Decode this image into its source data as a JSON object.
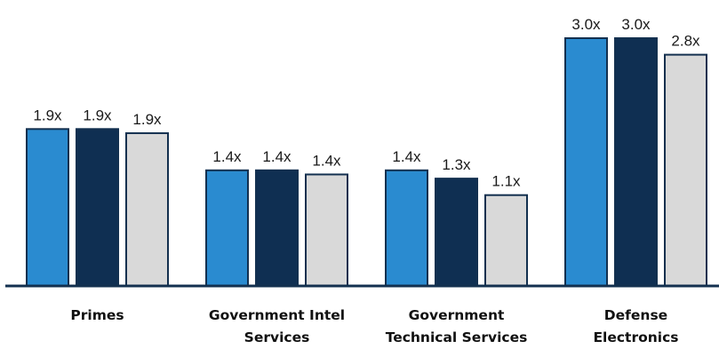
{
  "chart_data": {
    "type": "bar",
    "categories": [
      [
        "Primes"
      ],
      [
        "Government Intel",
        "Services"
      ],
      [
        "Government",
        "Technical Services"
      ],
      [
        "Defense",
        "Electronics"
      ]
    ],
    "series": [
      {
        "values": [
          1.9,
          1.4,
          1.4,
          3.0
        ],
        "labels": [
          "1.9x",
          "1.4x",
          "1.4x",
          "3.0x"
        ],
        "color": "#2a8bd0"
      },
      {
        "values": [
          1.9,
          1.4,
          1.3,
          3.0
        ],
        "labels": [
          "1.9x",
          "1.4x",
          "1.3x",
          "3.0x"
        ],
        "color": "#0f2f52"
      },
      {
        "values": [
          1.85,
          1.35,
          1.1,
          2.8
        ],
        "labels": [
          "1.9x",
          "1.4x",
          "1.1x",
          "2.8x"
        ],
        "color": "#d9d9d9"
      }
    ],
    "ylim": [
      0,
      3.0
    ],
    "grid": false,
    "axis_color": "#13304f",
    "bar_outline": "#13304f"
  }
}
